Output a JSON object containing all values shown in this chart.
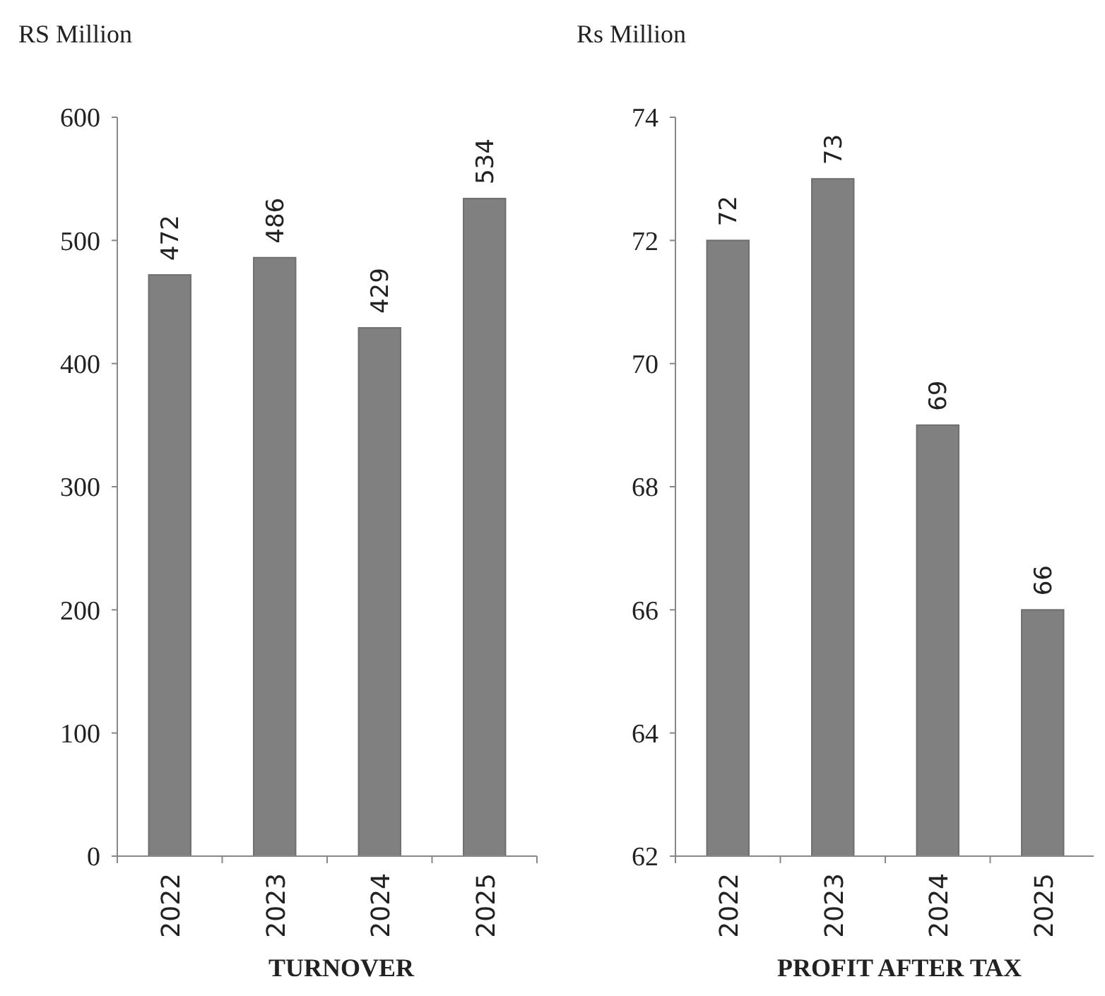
{
  "chart_data": [
    {
      "type": "bar",
      "ylabel": "RS Million",
      "xlabel": "TURNOVER",
      "categories": [
        "2022",
        "2023",
        "2024",
        "2025"
      ],
      "values": [
        472,
        486,
        429,
        534
      ],
      "color": "#808080",
      "ylim": [
        0,
        600
      ],
      "yticks": [
        0,
        100,
        200,
        300,
        400,
        500,
        600
      ],
      "data_labels": true
    },
    {
      "type": "bar",
      "ylabel": "Rs Million",
      "xlabel": "PROFIT AFTER TAX",
      "categories": [
        "2022",
        "2023",
        "2024",
        "2025"
      ],
      "values": [
        72,
        73,
        69,
        66
      ],
      "color": "#808080",
      "ylim": [
        62,
        74
      ],
      "yticks": [
        62,
        64,
        66,
        68,
        70,
        72,
        74
      ],
      "data_labels": true
    }
  ]
}
